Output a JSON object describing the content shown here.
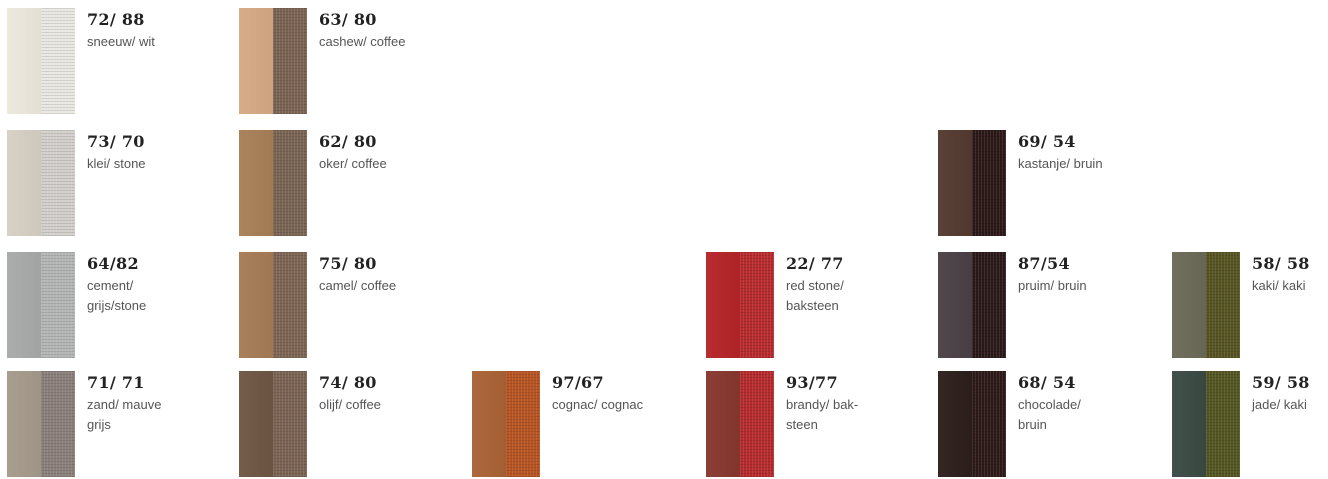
{
  "swatches": [
    {
      "code": "72/ 88",
      "name": "sneeuw/ wit",
      "colors": [
        "#ece8dc",
        "#eae8e2"
      ]
    },
    {
      "code": "63/ 80",
      "name": "cashew/ coffee",
      "colors": [
        "#d5a985",
        "#7a6353"
      ]
    },
    {
      "code": "73/ 70",
      "name": "klei/ stone",
      "colors": [
        "#d6d0c4",
        "#d3d0cc"
      ]
    },
    {
      "code": "62/ 80",
      "name": "oker/ coffee",
      "colors": [
        "#a77f56",
        "#7a6454"
      ]
    },
    {
      "code": "69/ 54",
      "name": "kastanje/ bruin",
      "colors": [
        "#533a30",
        "#2b1917"
      ]
    },
    {
      "code": "64/82",
      "name": "cement/\ngrijs/stone",
      "colors": [
        "#a7aaa9",
        "#b3b6b5"
      ]
    },
    {
      "code": "75/ 80",
      "name": "camel/ coffee",
      "colors": [
        "#a67b56",
        "#7e6553"
      ]
    },
    {
      "code": "22/ 77",
      "name": "red stone/\nbaksteen",
      "colors": [
        "#b52427",
        "#b82a2c"
      ]
    },
    {
      "code": "87/54",
      "name": "pruim/ bruin",
      "colors": [
        "#4a4045",
        "#2a1a19"
      ]
    },
    {
      "code": "58/ 58",
      "name": "kaki/ kaki",
      "colors": [
        "#6b6a58",
        "#565422"
      ]
    },
    {
      "code": "71/ 71",
      "name": "zand/ mauve\ngrijs",
      "colors": [
        "#a59a8b",
        "#8a7f7b"
      ]
    },
    {
      "code": "74/ 80",
      "name": "olijf/ coffee",
      "colors": [
        "#6f5643",
        "#7b6354"
      ]
    },
    {
      "code": "97/67",
      "name": "cognac/ cognac",
      "colors": [
        "#aa6236",
        "#b65422"
      ]
    },
    {
      "code": "93/77",
      "name": "brandy/ bak-\nsteen",
      "colors": [
        "#87372e",
        "#b52b2d"
      ]
    },
    {
      "code": "68/ 54",
      "name": "chocolade/\nbruin",
      "colors": [
        "#2c1e1b",
        "#2c1a18"
      ]
    },
    {
      "code": "59/ 58",
      "name": "jade/ kaki",
      "colors": [
        "#3a4a43",
        "#535622"
      ]
    }
  ]
}
